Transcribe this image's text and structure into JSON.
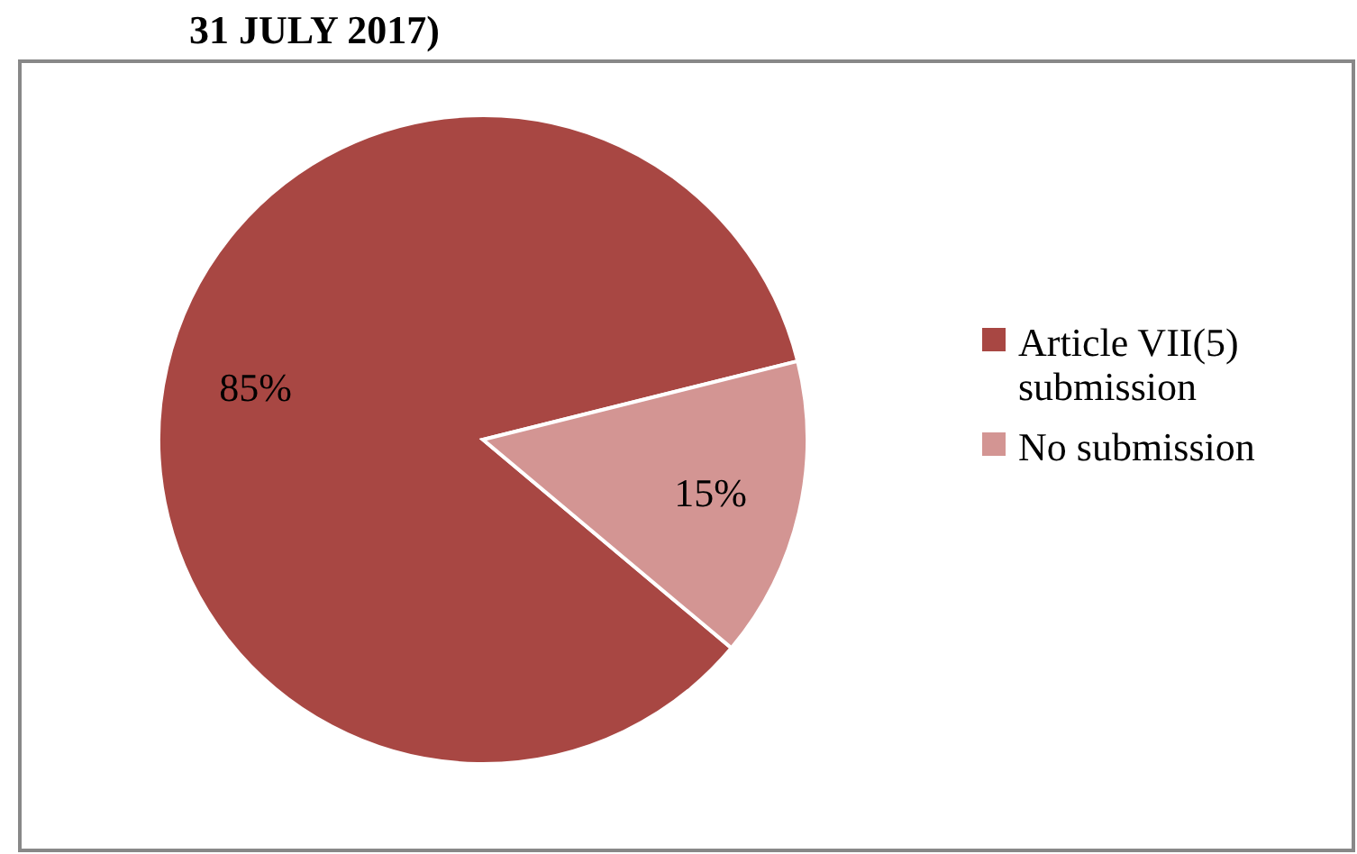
{
  "chart_data": {
    "type": "pie",
    "title": "31 JULY 2017)",
    "categories": [
      "Article VII(5) submission",
      "No submission"
    ],
    "values": [
      85,
      15
    ],
    "colors": [
      "#a84743",
      "#d39593"
    ],
    "value_labels": [
      "85%",
      "15%"
    ],
    "legend": "right"
  }
}
